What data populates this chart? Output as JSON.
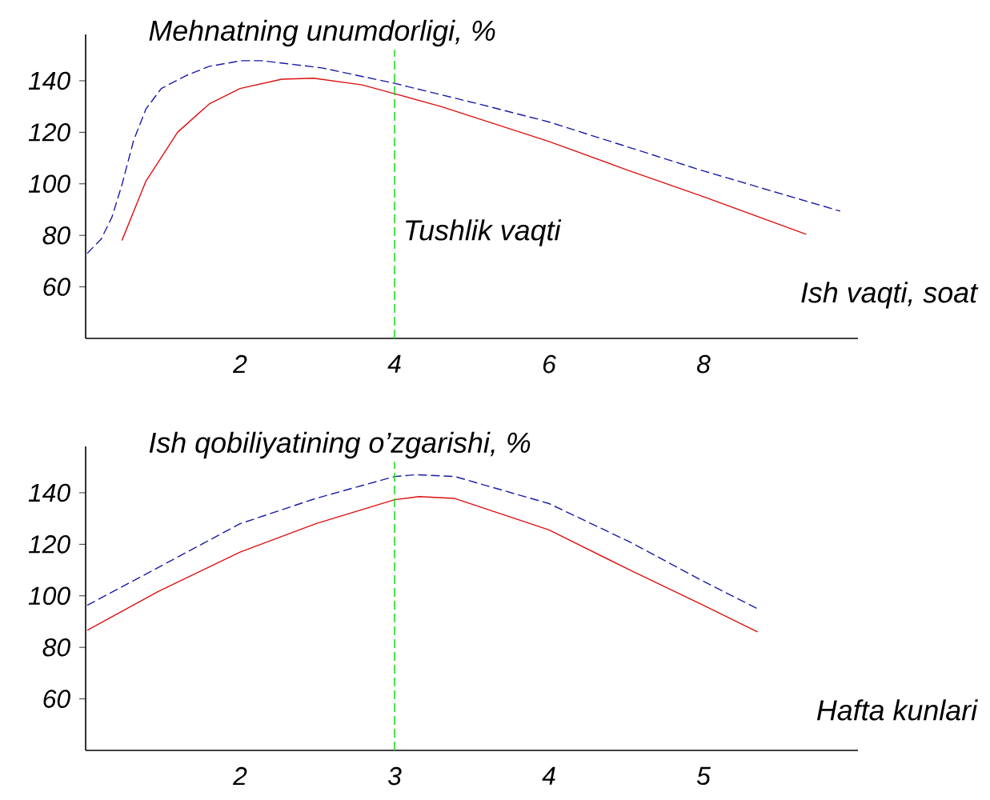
{
  "chart_data": [
    {
      "type": "line",
      "ylabel": "Mehnatning unumdorligi, %",
      "xlabel": "Ish vaqti, soat",
      "xlim": [
        0,
        10
      ],
      "ylim": [
        40,
        158
      ],
      "xticks": [
        2,
        4,
        6,
        8
      ],
      "yticks": [
        60,
        80,
        100,
        120,
        140
      ],
      "marker": "none",
      "series": [
        {
          "color": "#dd1111",
          "line_style": "solid",
          "x": [
            0.47,
            0.78,
            1.19,
            1.6,
            2.0,
            2.54,
            2.95,
            3.58,
            4.0,
            4.6,
            6.0,
            7.0,
            8.0,
            9.33
          ],
          "values": [
            78,
            101,
            120,
            131,
            137,
            140.6,
            141,
            138.4,
            135,
            130,
            116.4,
            105.5,
            95,
            80.4
          ]
        },
        {
          "color": "#1a1aa8",
          "line_style": "dashed",
          "x": [
            0.02,
            0.2,
            0.34,
            0.47,
            0.62,
            0.78,
            0.98,
            1.3,
            1.6,
            2.02,
            2.28,
            3.06,
            4.0,
            5.13,
            6.0,
            8.0,
            9.77
          ],
          "values": [
            73,
            78.5,
            87,
            99.6,
            116.7,
            129,
            137,
            142,
            145.6,
            147.8,
            147.8,
            145,
            139,
            130.7,
            124,
            105,
            89.4
          ]
        }
      ],
      "ref_lines": [
        {
          "axis": "x",
          "value": 4,
          "label": "Tushlik vaqti",
          "color": "#22dd22",
          "line_style": "dashed"
        }
      ]
    },
    {
      "type": "line",
      "ylabel": "Ish qobiliyatining o’zgarishi, %",
      "xlabel": "Hafta kunlari",
      "xlim": [
        1,
        6
      ],
      "ylim": [
        40,
        158
      ],
      "xticks": [
        2,
        3,
        4,
        5
      ],
      "yticks": [
        60,
        80,
        100,
        120,
        140
      ],
      "marker": "none",
      "series": [
        {
          "color": "#dd1111",
          "line_style": "solid",
          "x": [
            1.01,
            1.47,
            2.0,
            2.49,
            3.0,
            3.16,
            3.39,
            4.0,
            4.53,
            5.0,
            5.35
          ],
          "values": [
            86.6,
            101.7,
            117,
            128,
            137.3,
            138.5,
            137.8,
            125.6,
            109.8,
            96.3,
            86
          ]
        },
        {
          "color": "#1a1aa8",
          "line_style": "dashed",
          "x": [
            1.01,
            1.47,
            2.0,
            2.49,
            3.0,
            3.14,
            3.39,
            4.0,
            4.53,
            5.0,
            5.35
          ],
          "values": [
            96.3,
            111,
            128,
            137.8,
            146.3,
            147,
            146.3,
            135.8,
            120.7,
            105.6,
            95
          ]
        }
      ],
      "ref_lines": [
        {
          "axis": "x",
          "value": 3,
          "color": "#22dd22",
          "line_style": "dashed"
        }
      ]
    }
  ]
}
